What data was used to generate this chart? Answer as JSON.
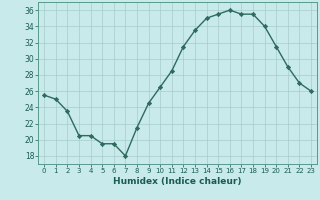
{
  "x": [
    0,
    1,
    2,
    3,
    4,
    5,
    6,
    7,
    8,
    9,
    10,
    11,
    12,
    13,
    14,
    15,
    16,
    17,
    18,
    19,
    20,
    21,
    22,
    23
  ],
  "y": [
    25.5,
    25.0,
    23.5,
    20.5,
    20.5,
    19.5,
    19.5,
    18.0,
    21.5,
    24.5,
    26.5,
    28.5,
    31.5,
    33.5,
    35.0,
    35.5,
    36.0,
    35.5,
    35.5,
    34.0,
    31.5,
    29.0,
    27.0,
    26.0
  ],
  "line_color": "#2e6b5e",
  "marker": "D",
  "marker_size": 2.2,
  "xlabel": "Humidex (Indice chaleur)",
  "xlim": [
    -0.5,
    23.5
  ],
  "ylim": [
    17,
    37
  ],
  "yticks": [
    18,
    20,
    22,
    24,
    26,
    28,
    30,
    32,
    34,
    36
  ],
  "xticks": [
    0,
    1,
    2,
    3,
    4,
    5,
    6,
    7,
    8,
    9,
    10,
    11,
    12,
    13,
    14,
    15,
    16,
    17,
    18,
    19,
    20,
    21,
    22,
    23
  ],
  "xtick_labels": [
    "0",
    "1",
    "2",
    "3",
    "4",
    "5",
    "6",
    "7",
    "8",
    "9",
    "10",
    "11",
    "12",
    "13",
    "14",
    "15",
    "16",
    "17",
    "18",
    "19",
    "20",
    "21",
    "22",
    "23"
  ],
  "background_color": "#c8eaea",
  "grid_color": "#a8cccc",
  "line_width": 1.0
}
